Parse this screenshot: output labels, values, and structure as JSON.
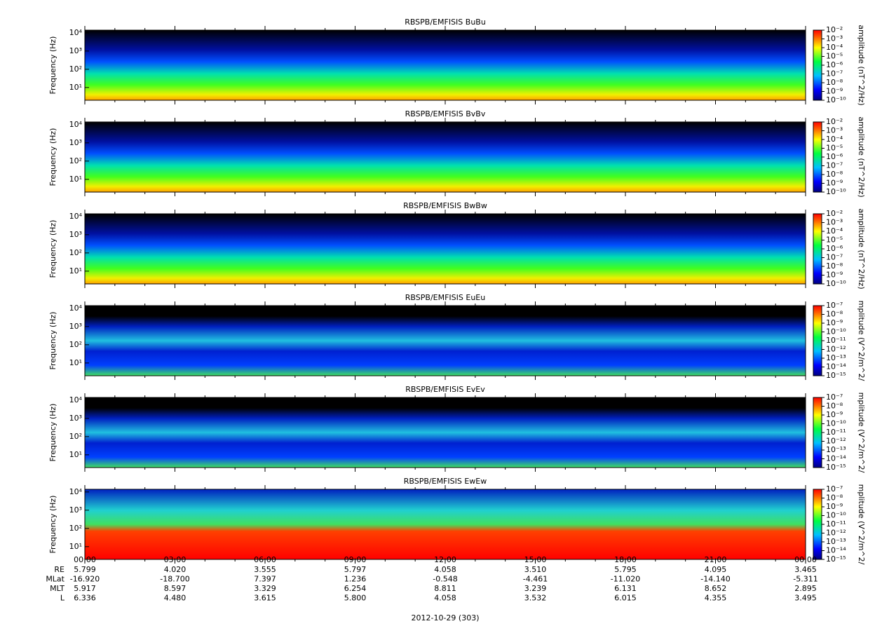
{
  "chart_data": [
    {
      "type": "spectrogram",
      "title": "RBSPB/EMFISIS  BuBu",
      "y_label": "Frequency (Hz)",
      "log_y": true,
      "ylim": [
        2,
        14000
      ],
      "yticks": [
        {
          "value": 10,
          "label": "10¹"
        },
        {
          "value": 100,
          "label": "10²"
        },
        {
          "value": 1000,
          "label": "10³"
        },
        {
          "value": 10000,
          "label": "10⁴"
        }
      ],
      "colorbar_label": "amplitude (nT^2/Hz)",
      "clim": [
        1e-10,
        0.01
      ],
      "cticks": [
        {
          "value": 0.01,
          "label": "10⁻²"
        },
        {
          "value": 0.001,
          "label": "10⁻³"
        },
        {
          "value": 0.0001,
          "label": "10⁻⁴"
        },
        {
          "value": 1e-05,
          "label": "10⁻⁵"
        },
        {
          "value": 1e-06,
          "label": "10⁻⁶"
        },
        {
          "value": 1e-07,
          "label": "10⁻⁷"
        },
        {
          "value": 1e-08,
          "label": "10⁻⁸"
        },
        {
          "value": 1e-09,
          "label": "10⁻⁹"
        },
        {
          "value": 1e-10,
          "label": "10⁻¹⁰"
        }
      ]
    },
    {
      "type": "spectrogram",
      "title": "RBSPB/EMFISIS  BvBv",
      "y_label": "Frequency (Hz)",
      "log_y": true,
      "ylim": [
        2,
        14000
      ],
      "yticks": [
        {
          "value": 10,
          "label": "10¹"
        },
        {
          "value": 100,
          "label": "10²"
        },
        {
          "value": 1000,
          "label": "10³"
        },
        {
          "value": 10000,
          "label": "10⁴"
        }
      ],
      "colorbar_label": "amplitude (nT^2/Hz)",
      "clim": [
        1e-10,
        0.01
      ],
      "cticks": [
        {
          "value": 0.01,
          "label": "10⁻²"
        },
        {
          "value": 0.001,
          "label": "10⁻³"
        },
        {
          "value": 0.0001,
          "label": "10⁻⁴"
        },
        {
          "value": 1e-05,
          "label": "10⁻⁵"
        },
        {
          "value": 1e-06,
          "label": "10⁻⁶"
        },
        {
          "value": 1e-07,
          "label": "10⁻⁷"
        },
        {
          "value": 1e-08,
          "label": "10⁻⁸"
        },
        {
          "value": 1e-09,
          "label": "10⁻⁹"
        },
        {
          "value": 1e-10,
          "label": "10⁻¹⁰"
        }
      ]
    },
    {
      "type": "spectrogram",
      "title": "RBSPB/EMFISIS  BwBw",
      "y_label": "Frequency (Hz)",
      "log_y": true,
      "ylim": [
        2,
        14000
      ],
      "yticks": [
        {
          "value": 10,
          "label": "10¹"
        },
        {
          "value": 100,
          "label": "10²"
        },
        {
          "value": 1000,
          "label": "10³"
        },
        {
          "value": 10000,
          "label": "10⁴"
        }
      ],
      "colorbar_label": "amplitude (nT^2/Hz)",
      "clim": [
        1e-10,
        0.01
      ],
      "cticks": [
        {
          "value": 0.01,
          "label": "10⁻²"
        },
        {
          "value": 0.001,
          "label": "10⁻³"
        },
        {
          "value": 0.0001,
          "label": "10⁻⁴"
        },
        {
          "value": 1e-05,
          "label": "10⁻⁵"
        },
        {
          "value": 1e-06,
          "label": "10⁻⁶"
        },
        {
          "value": 1e-07,
          "label": "10⁻⁷"
        },
        {
          "value": 1e-08,
          "label": "10⁻⁸"
        },
        {
          "value": 1e-09,
          "label": "10⁻⁹"
        },
        {
          "value": 1e-10,
          "label": "10⁻¹⁰"
        }
      ]
    },
    {
      "type": "spectrogram",
      "title": "RBSPB/EMFISIS  EuEu",
      "y_label": "Frequency (Hz)",
      "log_y": true,
      "ylim": [
        2,
        14000
      ],
      "yticks": [
        {
          "value": 10,
          "label": "10¹"
        },
        {
          "value": 100,
          "label": "10²"
        },
        {
          "value": 1000,
          "label": "10³"
        },
        {
          "value": 10000,
          "label": "10⁴"
        }
      ],
      "colorbar_label": "mplitude (V^2/m^2/",
      "clim": [
        1e-15,
        1e-07
      ],
      "cticks": [
        {
          "value": 1e-07,
          "label": "10⁻⁷"
        },
        {
          "value": 1e-08,
          "label": "10⁻⁸"
        },
        {
          "value": 1e-09,
          "label": "10⁻⁹"
        },
        {
          "value": 1e-10,
          "label": "10⁻¹⁰"
        },
        {
          "value": 1e-11,
          "label": "10⁻¹¹"
        },
        {
          "value": 1e-12,
          "label": "10⁻¹²"
        },
        {
          "value": 1e-13,
          "label": "10⁻¹³"
        },
        {
          "value": 1e-14,
          "label": "10⁻¹⁴"
        },
        {
          "value": 1e-15,
          "label": "10⁻¹⁵"
        }
      ]
    },
    {
      "type": "spectrogram",
      "title": "RBSPB/EMFISIS  EvEv",
      "y_label": "Frequency (Hz)",
      "log_y": true,
      "ylim": [
        2,
        14000
      ],
      "yticks": [
        {
          "value": 10,
          "label": "10¹"
        },
        {
          "value": 100,
          "label": "10²"
        },
        {
          "value": 1000,
          "label": "10³"
        },
        {
          "value": 10000,
          "label": "10⁴"
        }
      ],
      "colorbar_label": "mplitude (V^2/m^2/",
      "clim": [
        1e-15,
        1e-07
      ],
      "cticks": [
        {
          "value": 1e-07,
          "label": "10⁻⁷"
        },
        {
          "value": 1e-08,
          "label": "10⁻⁸"
        },
        {
          "value": 1e-09,
          "label": "10⁻⁹"
        },
        {
          "value": 1e-10,
          "label": "10⁻¹⁰"
        },
        {
          "value": 1e-11,
          "label": "10⁻¹¹"
        },
        {
          "value": 1e-12,
          "label": "10⁻¹²"
        },
        {
          "value": 1e-13,
          "label": "10⁻¹³"
        },
        {
          "value": 1e-14,
          "label": "10⁻¹⁴"
        },
        {
          "value": 1e-15,
          "label": "10⁻¹⁵"
        }
      ]
    },
    {
      "type": "spectrogram",
      "title": "RBSPB/EMFISIS  EwEw",
      "y_label": "Frequency (Hz)",
      "log_y": true,
      "ylim": [
        2,
        14000
      ],
      "yticks": [
        {
          "value": 10,
          "label": "10¹"
        },
        {
          "value": 100,
          "label": "10²"
        },
        {
          "value": 1000,
          "label": "10³"
        },
        {
          "value": 10000,
          "label": "10⁴"
        }
      ],
      "colorbar_label": "mplitude (V^2/m^2/",
      "clim": [
        1e-15,
        1e-07
      ],
      "cticks": [
        {
          "value": 1e-07,
          "label": "10⁻⁷"
        },
        {
          "value": 1e-08,
          "label": "10⁻⁸"
        },
        {
          "value": 1e-09,
          "label": "10⁻⁹"
        },
        {
          "value": 1e-10,
          "label": "10⁻¹⁰"
        },
        {
          "value": 1e-11,
          "label": "10⁻¹¹"
        },
        {
          "value": 1e-12,
          "label": "10⁻¹²"
        },
        {
          "value": 1e-13,
          "label": "10⁻¹³"
        },
        {
          "value": 1e-14,
          "label": "10⁻¹⁴"
        },
        {
          "value": 1e-15,
          "label": "10⁻¹⁵"
        }
      ]
    }
  ],
  "time_axis": {
    "xlim": [
      0,
      24
    ],
    "xticks": [
      {
        "value": 0,
        "label": "00:00"
      },
      {
        "value": 3,
        "label": "03:00"
      },
      {
        "value": 6,
        "label": "06:00"
      },
      {
        "value": 9,
        "label": "09:00"
      },
      {
        "value": 12,
        "label": "12:00"
      },
      {
        "value": 15,
        "label": "15:00"
      },
      {
        "value": 18,
        "label": "18:00"
      },
      {
        "value": 21,
        "label": "21:00"
      },
      {
        "value": 24,
        "label": "00:00"
      }
    ],
    "xminor": [
      1,
      2,
      4,
      5,
      7,
      8,
      10,
      11,
      13,
      14,
      16,
      17,
      19,
      20,
      22,
      23
    ]
  },
  "ephemeris": [
    {
      "label": "RE",
      "values": [
        "5.799",
        "4.020",
        "3.555",
        "5.797",
        "4.058",
        "3.510",
        "5.795",
        "4.095",
        "3.465"
      ]
    },
    {
      "label": "MLat",
      "values": [
        "-16.920",
        "-18.700",
        "7.397",
        "1.236",
        "-0.548",
        "-4.461",
        "-11.020",
        "-14.140",
        "-5.311"
      ]
    },
    {
      "label": "MLT",
      "values": [
        "5.917",
        "8.597",
        "3.329",
        "6.254",
        "8.811",
        "3.239",
        "6.131",
        "8.652",
        "2.895"
      ]
    },
    {
      "label": "L",
      "values": [
        "6.336",
        "4.480",
        "3.615",
        "5.800",
        "4.058",
        "3.532",
        "6.015",
        "4.355",
        "3.495"
      ]
    }
  ],
  "date_label": "2012-10-29 (303)"
}
